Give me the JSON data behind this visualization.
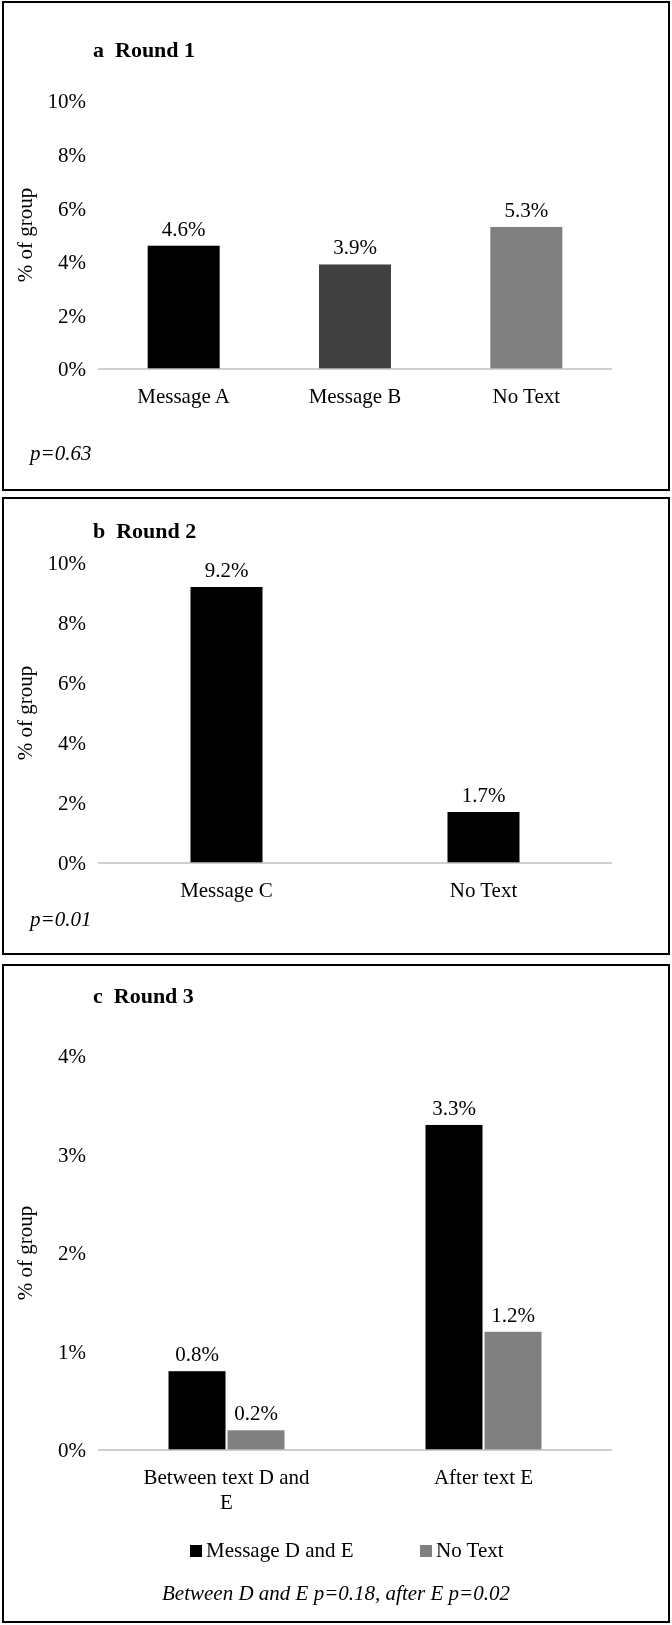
{
  "chart_data": [
    {
      "type": "bar",
      "title": "a  Round 1",
      "ylabel": "% of group",
      "categories": [
        "Message A",
        "Message B",
        "No Text"
      ],
      "values": [
        4.6,
        3.9,
        5.3
      ],
      "colors": [
        "#000000",
        "#404040",
        "#808080"
      ],
      "value_labels": [
        "4.6%",
        "3.9%",
        "5.3%"
      ],
      "ylim": [
        0,
        10
      ],
      "yticks": [
        {
          "value": 0,
          "label": "0%"
        },
        {
          "value": 2,
          "label": "2%"
        },
        {
          "value": 4,
          "label": "4%"
        },
        {
          "value": 6,
          "label": "6%"
        },
        {
          "value": 8,
          "label": "8%"
        },
        {
          "value": 10,
          "label": "10%"
        }
      ],
      "grid": false,
      "legend": false,
      "annotations": [
        "p=0.63"
      ]
    },
    {
      "type": "bar",
      "title": "b  Round 2",
      "ylabel": "% of group",
      "categories": [
        "Message C",
        "No Text"
      ],
      "values": [
        9.2,
        1.7
      ],
      "colors": [
        "#000000",
        "#000000"
      ],
      "value_labels": [
        "9.2%",
        "1.7%"
      ],
      "ylim": [
        0,
        10
      ],
      "yticks": [
        {
          "value": 0,
          "label": "0%"
        },
        {
          "value": 2,
          "label": "2%"
        },
        {
          "value": 4,
          "label": "4%"
        },
        {
          "value": 6,
          "label": "6%"
        },
        {
          "value": 8,
          "label": "8%"
        },
        {
          "value": 10,
          "label": "10%"
        }
      ],
      "grid": false,
      "legend": false,
      "annotations": [
        "p=0.01"
      ]
    },
    {
      "type": "bar",
      "title": "c  Round 3",
      "ylabel": "% of group",
      "categories": [
        "Between text D and E",
        "After text E"
      ],
      "series": [
        {
          "name": "Message D and E",
          "color": "#000000",
          "values": [
            0.8,
            3.3
          ],
          "value_labels": [
            "0.8%",
            "3.3%"
          ]
        },
        {
          "name": "No Text",
          "color": "#808080",
          "values": [
            0.2,
            1.2
          ],
          "value_labels": [
            "0.2%",
            "1.2%"
          ]
        }
      ],
      "ylim": [
        0,
        4
      ],
      "yticks": [
        {
          "value": 0,
          "label": "0%"
        },
        {
          "value": 1,
          "label": "1%"
        },
        {
          "value": 2,
          "label": "2%"
        },
        {
          "value": 3,
          "label": "3%"
        },
        {
          "value": 4,
          "label": "4%"
        }
      ],
      "grid": false,
      "legend": "bottom",
      "annotations": [
        "Between D and E p=0.18, after E p=0.02"
      ]
    }
  ]
}
